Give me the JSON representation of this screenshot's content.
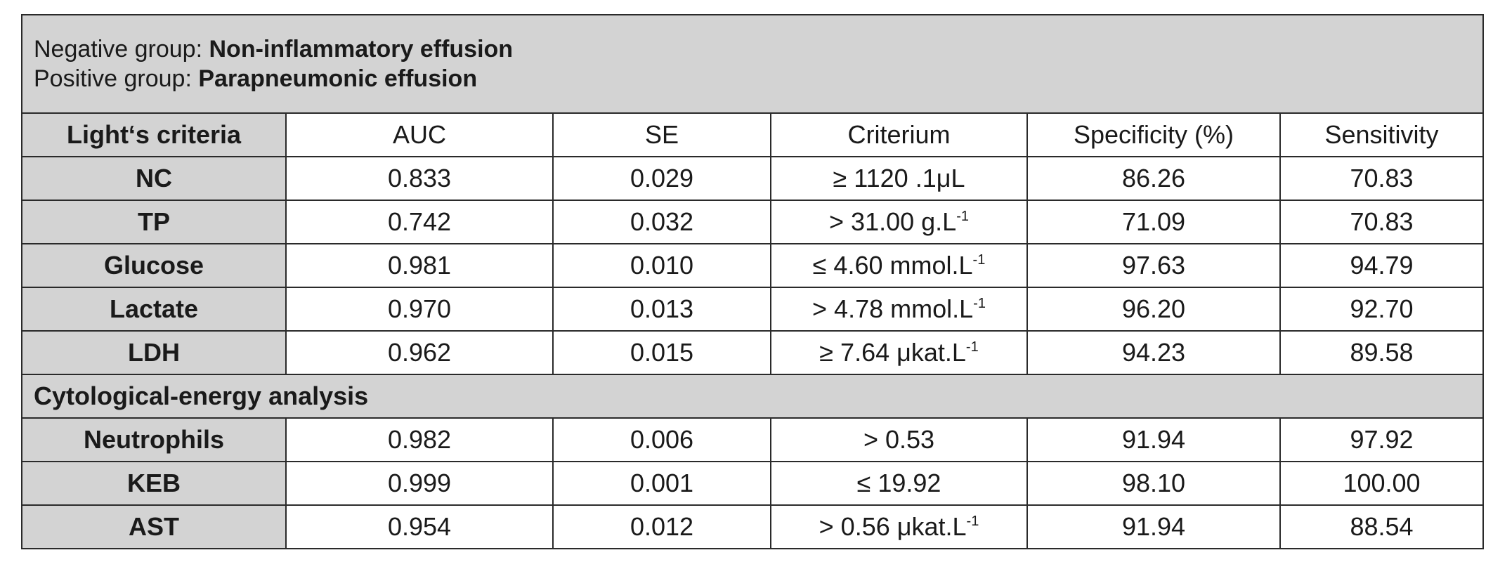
{
  "banner": {
    "negative_prefix": "Negative group: ",
    "negative_value": "Non-inflammatory effusion",
    "positive_prefix": "Positive group: ",
    "positive_value": "Parapneumonic effusion"
  },
  "header": {
    "section_label": "Light‘s criteria",
    "columns": [
      "AUC",
      "SE",
      "Criterium",
      "Specificity (%)",
      "Sensitivity"
    ]
  },
  "light_rows": [
    {
      "name": "NC",
      "auc": "0.833",
      "se": "0.029",
      "criterium": "≥ 1120 .1μL",
      "criterium_sup": "",
      "specificity": "86.26",
      "sensitivity": "70.83"
    },
    {
      "name": "TP",
      "auc": "0.742",
      "se": "0.032",
      "criterium": "> 31.00 g.L",
      "criterium_sup": "-1",
      "specificity": "71.09",
      "sensitivity": "70.83"
    },
    {
      "name": "Glucose",
      "auc": "0.981",
      "se": "0.010",
      "criterium": "≤ 4.60 mmol.L",
      "criterium_sup": "-1",
      "specificity": "97.63",
      "sensitivity": "94.79"
    },
    {
      "name": "Lactate",
      "auc": "0.970",
      "se": "0.013",
      "criterium": "> 4.78 mmol.L",
      "criterium_sup": "-1",
      "specificity": "96.20",
      "sensitivity": "92.70"
    },
    {
      "name": "LDH",
      "auc": "0.962",
      "se": "0.015",
      "criterium": "≥ 7.64 μkat.L",
      "criterium_sup": "-1",
      "specificity": "94.23",
      "sensitivity": "89.58"
    }
  ],
  "section2_label": "Cytological-energy analysis",
  "cyto_rows": [
    {
      "name": "Neutrophils",
      "auc": "0.982",
      "se": "0.006",
      "criterium": "> 0.53",
      "criterium_sup": "",
      "specificity": "91.94",
      "sensitivity": "97.92"
    },
    {
      "name": "KEB",
      "auc": "0.999",
      "se": "0.001",
      "criterium": "≤ 19.92",
      "criterium_sup": "",
      "specificity": "98.10",
      "sensitivity": "100.00"
    },
    {
      "name": "AST",
      "auc": "0.954",
      "se": "0.012",
      "criterium": "> 0.56 μkat.L",
      "criterium_sup": "-1",
      "specificity": "91.94",
      "sensitivity": "88.54"
    }
  ]
}
